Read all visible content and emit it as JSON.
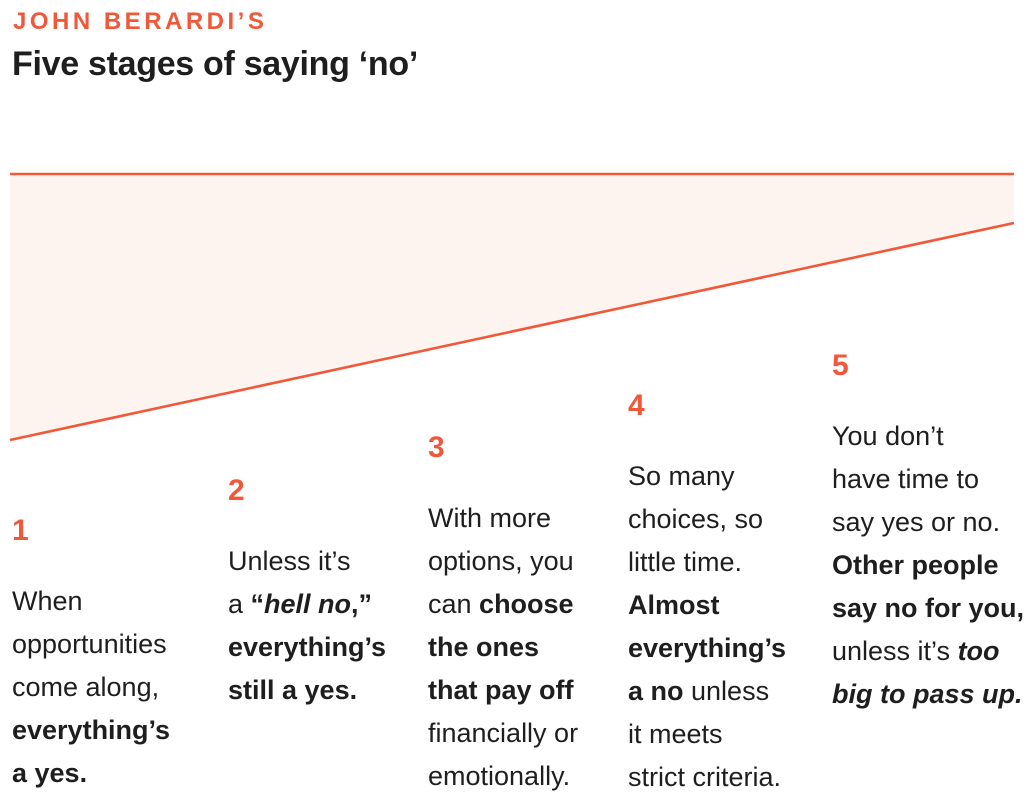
{
  "header": {
    "kicker": "JOHN BERARDI’S",
    "title": "Five stages of saying ‘no’"
  },
  "colors": {
    "accent": "#F1583A",
    "wedge_fill": "#FDF3EF",
    "text": "#1E1E1E"
  },
  "stages": [
    {
      "number": "1",
      "lines": [
        [
          {
            "t": "When"
          }
        ],
        [
          {
            "t": "opportunities"
          }
        ],
        [
          {
            "t": "come along,"
          }
        ],
        [
          {
            "t": "everything’s",
            "b": true
          }
        ],
        [
          {
            "t": "a yes.",
            "b": true
          }
        ]
      ]
    },
    {
      "number": "2",
      "lines": [
        [
          {
            "t": "Unless it’s"
          }
        ],
        [
          {
            "t": "a "
          },
          {
            "t": "“",
            "b": true
          },
          {
            "t": "hell no",
            "b": true,
            "i": true
          },
          {
            "t": ",”",
            "b": true
          }
        ],
        [
          {
            "t": "everything’s",
            "b": true
          }
        ],
        [
          {
            "t": "still a yes.",
            "b": true
          }
        ]
      ]
    },
    {
      "number": "3",
      "lines": [
        [
          {
            "t": "With more"
          }
        ],
        [
          {
            "t": "options, you"
          }
        ],
        [
          {
            "t": "can "
          },
          {
            "t": "choose",
            "b": true
          }
        ],
        [
          {
            "t": "the ones",
            "b": true
          }
        ],
        [
          {
            "t": "that pay off",
            "b": true
          }
        ],
        [
          {
            "t": "financially or"
          }
        ],
        [
          {
            "t": "emotionally."
          }
        ]
      ]
    },
    {
      "number": "4",
      "lines": [
        [
          {
            "t": "So many"
          }
        ],
        [
          {
            "t": "choices, so"
          }
        ],
        [
          {
            "t": "little time."
          }
        ],
        [
          {
            "t": "Almost",
            "b": true
          }
        ],
        [
          {
            "t": "everything’s",
            "b": true
          }
        ],
        [
          {
            "t": "a no",
            "b": true
          },
          {
            "t": " unless"
          }
        ],
        [
          {
            "t": "it meets"
          }
        ],
        [
          {
            "t": "strict criteria."
          }
        ]
      ]
    },
    {
      "number": "5",
      "lines": [
        [
          {
            "t": "You don’t"
          }
        ],
        [
          {
            "t": "have time to"
          }
        ],
        [
          {
            "t": "say yes or no."
          }
        ],
        [
          {
            "t": "Other people",
            "b": true
          }
        ],
        [
          {
            "t": "say no for you,",
            "b": true
          }
        ],
        [
          {
            "t": "unless it’s "
          },
          {
            "t": "too",
            "b": true,
            "i": true
          }
        ],
        [
          {
            "t": "big to pass up.",
            "b": true,
            "i": true
          }
        ]
      ]
    }
  ]
}
